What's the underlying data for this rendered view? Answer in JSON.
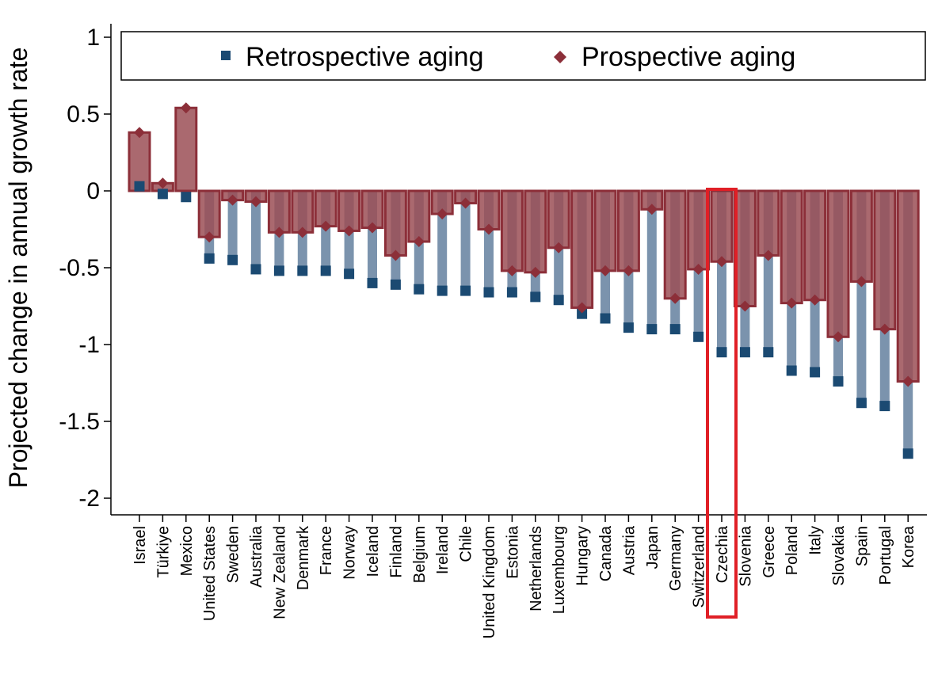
{
  "chart_data": {
    "type": "bar",
    "title": "",
    "xlabel": "",
    "ylabel": "Projected change in annual growth rate",
    "ylim": [
      -2.1,
      1.05
    ],
    "yticks": [
      1,
      0.5,
      0,
      -0.5,
      -1,
      -1.5,
      -2
    ],
    "ytick_labels": [
      "1",
      "0.5",
      "0",
      "-0.5",
      "-1",
      "-1.5",
      "-2"
    ],
    "legend_position": "top",
    "highlight": "Czechia",
    "colors": {
      "retro_bar": "#7b93ad",
      "retro_marker": "#1b4a72",
      "prosp_fill": "#9b4f56",
      "prosp_edge": "#8c2f39",
      "prosp_marker": "#8c2f39",
      "highlight": "#e01f26"
    },
    "categories": [
      "Israel",
      "Türkiye",
      "Mexico",
      "United States",
      "Sweden",
      "Australia",
      "New Zealand",
      "Denmark",
      "France",
      "Norway",
      "Iceland",
      "Finland",
      "Belgium",
      "Ireland",
      "Chile",
      "United Kingdom",
      "Estonia",
      "Netherlands",
      "Luxembourg",
      "Hungary",
      "Canada",
      "Austria",
      "Japan",
      "Germany",
      "Switzerland",
      "Czechia",
      "Slovenia",
      "Greece",
      "Poland",
      "Italy",
      "Slovakia",
      "Spain",
      "Portugal",
      "Korea"
    ],
    "series": [
      {
        "name": "Retrospective aging",
        "values": [
          0.03,
          -0.02,
          -0.04,
          -0.44,
          -0.45,
          -0.51,
          -0.52,
          -0.52,
          -0.52,
          -0.54,
          -0.6,
          -0.61,
          -0.64,
          -0.65,
          -0.65,
          -0.66,
          -0.66,
          -0.69,
          -0.71,
          -0.8,
          -0.83,
          -0.89,
          -0.9,
          -0.9,
          -0.95,
          -1.05,
          -1.05,
          -1.05,
          -1.17,
          -1.18,
          -1.24,
          -1.38,
          -1.4,
          -1.71
        ]
      },
      {
        "name": "Prospective aging",
        "values": [
          0.38,
          0.05,
          0.54,
          -0.3,
          -0.06,
          -0.07,
          -0.27,
          -0.27,
          -0.23,
          -0.26,
          -0.24,
          -0.42,
          -0.33,
          -0.15,
          -0.08,
          -0.25,
          -0.52,
          -0.53,
          -0.37,
          -0.76,
          -0.52,
          -0.52,
          -0.12,
          -0.7,
          -0.51,
          -0.46,
          -0.75,
          -0.42,
          -0.73,
          -0.71,
          -0.95,
          -0.59,
          -0.9,
          -1.24
        ]
      }
    ]
  }
}
